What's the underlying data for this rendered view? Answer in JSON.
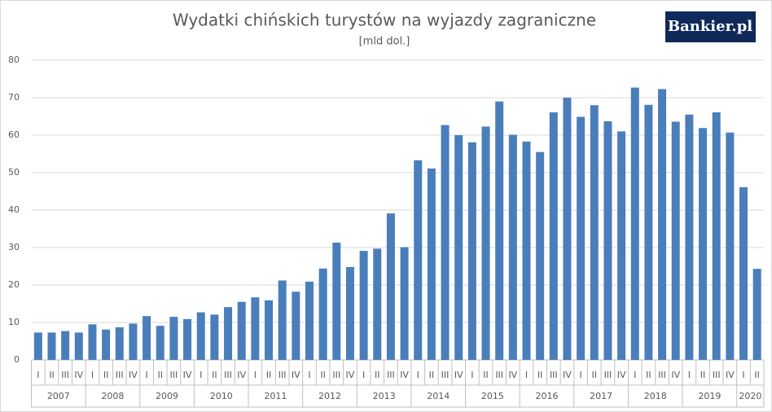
{
  "logo": "Bankier.pl",
  "chart_data": {
    "type": "bar",
    "title": "Wydatki chińskich turystów na wyjazdy zagraniczne",
    "subtitle": "[mld dol.]",
    "year_groups": [
      {
        "label": "2007",
        "quarters": [
          "I",
          "II",
          "III",
          "IV"
        ]
      },
      {
        "label": "2008",
        "quarters": [
          "I",
          "II",
          "III",
          "IV"
        ]
      },
      {
        "label": "2009",
        "quarters": [
          "I",
          "II",
          "III",
          "IV"
        ]
      },
      {
        "label": "2010",
        "quarters": [
          "I",
          "II",
          "III",
          "IV"
        ]
      },
      {
        "label": "2011",
        "quarters": [
          "I",
          "II",
          "III",
          "IV"
        ]
      },
      {
        "label": "2012",
        "quarters": [
          "I",
          "II",
          "III",
          "IV"
        ]
      },
      {
        "label": "2013",
        "quarters": [
          "I",
          "II",
          "III",
          "IV"
        ]
      },
      {
        "label": "2014",
        "quarters": [
          "I",
          "II",
          "III",
          "IV"
        ]
      },
      {
        "label": "2015",
        "quarters": [
          "I",
          "II",
          "III",
          "IV"
        ]
      },
      {
        "label": "2016",
        "quarters": [
          "I",
          "II",
          "III",
          "IV"
        ]
      },
      {
        "label": "2017",
        "quarters": [
          "I",
          "II",
          "III",
          "IV"
        ]
      },
      {
        "label": "2018",
        "quarters": [
          "I",
          "II",
          "III",
          "IV"
        ]
      },
      {
        "label": "2019",
        "quarters": [
          "I",
          "II",
          "III",
          "IV"
        ]
      },
      {
        "label": "2020",
        "quarters": [
          "I",
          "II"
        ]
      }
    ],
    "values": [
      7.3,
      7.3,
      7.7,
      7.3,
      9.5,
      8.1,
      8.7,
      9.7,
      11.7,
      9.1,
      11.5,
      10.9,
      12.7,
      12.1,
      14.1,
      15.5,
      16.7,
      15.9,
      21.2,
      18.2,
      20.9,
      24.4,
      31.3,
      24.8,
      29.1,
      29.7,
      39.1,
      30.1,
      53.3,
      51.1,
      62.7,
      60.0,
      58.1,
      62.3,
      69.0,
      60.1,
      58.3,
      55.5,
      66.1,
      70.0,
      64.9,
      68.0,
      63.7,
      61.0,
      72.7,
      68.1,
      72.3,
      63.6,
      65.5,
      61.9,
      66.1,
      60.7,
      46.1,
      24.3
    ],
    "color": "#4a7ebb",
    "ylim": [
      0,
      80
    ],
    "yticks": [
      0,
      10,
      20,
      30,
      40,
      50,
      60,
      70,
      80
    ],
    "grid": true
  }
}
